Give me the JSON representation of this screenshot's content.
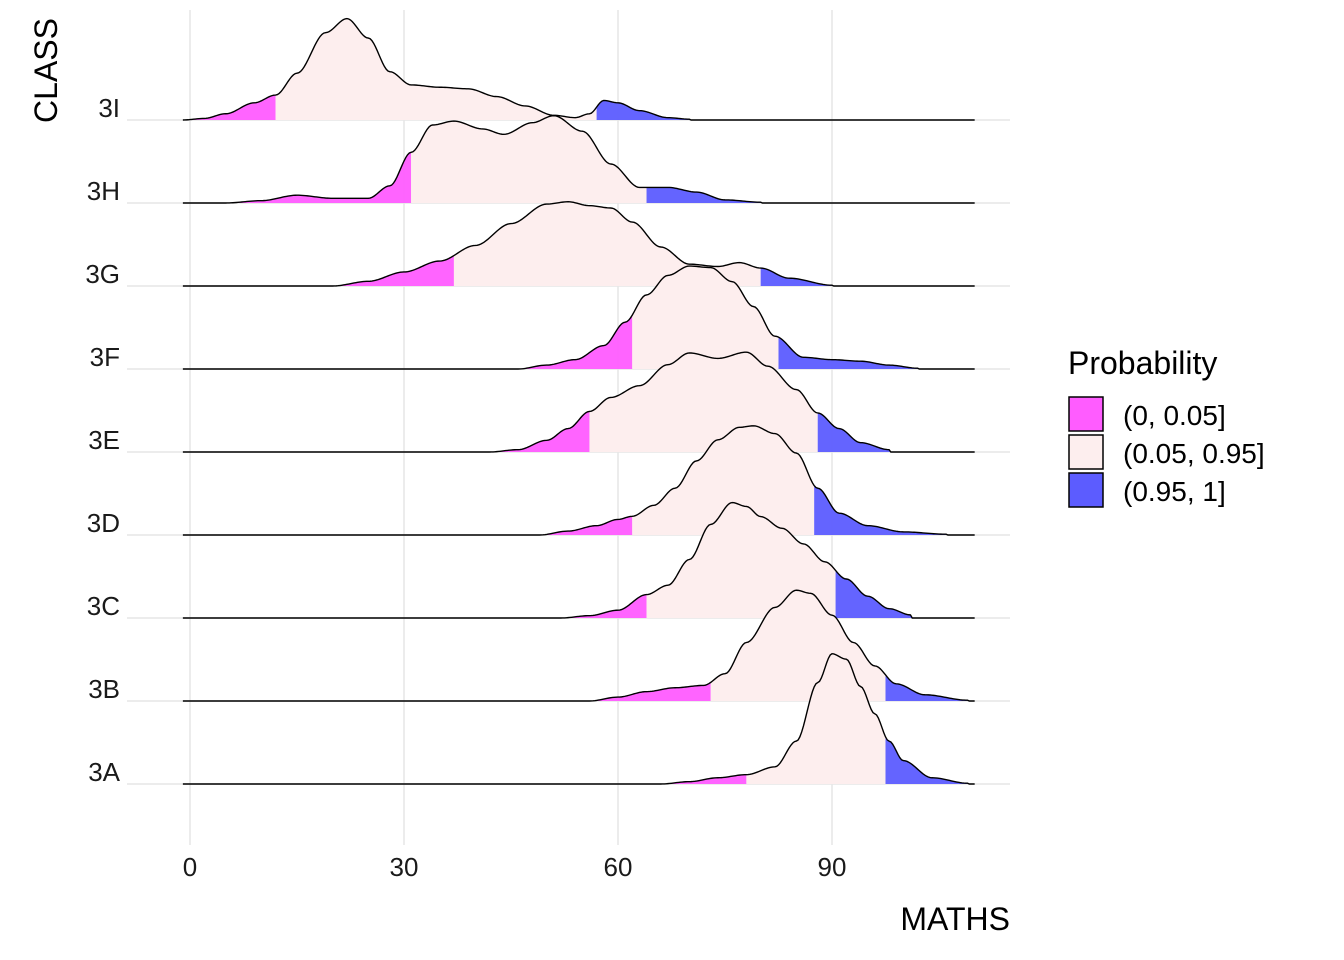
{
  "chart_data": {
    "type": "ridgeline",
    "title": "",
    "xlabel": "MATHS",
    "ylabel": "CLASS",
    "xlim": [
      -3,
      112
    ],
    "x_ticks": [
      0,
      30,
      60,
      90
    ],
    "x_tick_labels": [
      "0",
      "30",
      "60",
      "90"
    ],
    "grid": true,
    "legend": {
      "title": "Probability",
      "placement": "right",
      "entries": [
        {
          "label": "(0, 0.05]",
          "color": "#ff5cff"
        },
        {
          "label": "(0.05, 0.95]",
          "color": "#fdeeee"
        },
        {
          "label": "(0.95, 1]",
          "color": "#5c5cff"
        }
      ]
    },
    "categories": [
      "3A",
      "3B",
      "3C",
      "3D",
      "3E",
      "3F",
      "3G",
      "3H",
      "3I"
    ],
    "series": [
      {
        "name": "3A",
        "q05": 78,
        "q95": 97.5,
        "density": [
          [
            -1,
            0
          ],
          [
            66,
            0
          ],
          [
            70,
            0.03
          ],
          [
            74,
            0.08
          ],
          [
            78,
            0.12
          ],
          [
            82,
            0.22
          ],
          [
            85,
            0.55
          ],
          [
            88,
            1.3
          ],
          [
            90,
            1.67
          ],
          [
            92,
            1.6
          ],
          [
            94,
            1.25
          ],
          [
            96,
            0.9
          ],
          [
            98,
            0.55
          ],
          [
            100,
            0.3
          ],
          [
            104,
            0.08
          ],
          [
            109,
            0.01
          ]
        ]
      },
      {
        "name": "3B",
        "q05": 73,
        "q95": 97.5,
        "density": [
          [
            -1,
            0
          ],
          [
            56,
            0
          ],
          [
            60,
            0.05
          ],
          [
            64,
            0.12
          ],
          [
            68,
            0.17
          ],
          [
            72,
            0.2
          ],
          [
            75,
            0.35
          ],
          [
            78,
            0.75
          ],
          [
            82,
            1.2
          ],
          [
            85,
            1.42
          ],
          [
            87,
            1.38
          ],
          [
            90,
            1.1
          ],
          [
            93,
            0.75
          ],
          [
            96,
            0.45
          ],
          [
            99,
            0.22
          ],
          [
            103,
            0.08
          ],
          [
            109,
            0.01
          ]
        ]
      },
      {
        "name": "3C",
        "q05": 64,
        "q95": 90.5,
        "density": [
          [
            -1,
            0
          ],
          [
            52,
            0
          ],
          [
            56,
            0.03
          ],
          [
            60,
            0.1
          ],
          [
            64,
            0.3
          ],
          [
            67,
            0.42
          ],
          [
            70,
            0.75
          ],
          [
            73,
            1.2
          ],
          [
            76,
            1.48
          ],
          [
            78,
            1.43
          ],
          [
            80,
            1.3
          ],
          [
            83,
            1.15
          ],
          [
            86,
            0.95
          ],
          [
            89,
            0.72
          ],
          [
            92,
            0.5
          ],
          [
            95,
            0.28
          ],
          [
            98,
            0.12
          ],
          [
            101,
            0.04
          ]
        ]
      },
      {
        "name": "3D",
        "q05": 62,
        "q95": 87.5,
        "density": [
          [
            -1,
            0
          ],
          [
            49,
            0
          ],
          [
            53,
            0.05
          ],
          [
            57,
            0.12
          ],
          [
            60,
            0.2
          ],
          [
            62,
            0.24
          ],
          [
            65,
            0.38
          ],
          [
            68,
            0.6
          ],
          [
            71,
            0.95
          ],
          [
            74,
            1.22
          ],
          [
            77,
            1.38
          ],
          [
            79,
            1.4
          ],
          [
            82,
            1.3
          ],
          [
            85,
            1.05
          ],
          [
            88,
            0.6
          ],
          [
            91,
            0.28
          ],
          [
            95,
            0.12
          ],
          [
            100,
            0.04
          ],
          [
            106,
            0.01
          ]
        ]
      },
      {
        "name": "3E",
        "q05": 56,
        "q95": 88,
        "density": [
          [
            -1,
            0
          ],
          [
            42,
            0
          ],
          [
            46,
            0.03
          ],
          [
            50,
            0.15
          ],
          [
            53,
            0.3
          ],
          [
            56,
            0.52
          ],
          [
            59,
            0.7
          ],
          [
            63,
            0.85
          ],
          [
            67,
            1.12
          ],
          [
            70,
            1.27
          ],
          [
            74,
            1.2
          ],
          [
            78,
            1.28
          ],
          [
            81,
            1.1
          ],
          [
            85,
            0.8
          ],
          [
            88,
            0.5
          ],
          [
            91,
            0.3
          ],
          [
            94,
            0.12
          ],
          [
            98,
            0.03
          ]
        ]
      },
      {
        "name": "3F",
        "q05": 62,
        "q95": 82.5,
        "density": [
          [
            -1,
            0
          ],
          [
            46,
            0
          ],
          [
            50,
            0.05
          ],
          [
            54,
            0.12
          ],
          [
            58,
            0.3
          ],
          [
            61,
            0.6
          ],
          [
            64,
            0.95
          ],
          [
            67,
            1.2
          ],
          [
            70,
            1.32
          ],
          [
            73,
            1.3
          ],
          [
            76,
            1.12
          ],
          [
            79,
            0.8
          ],
          [
            82,
            0.42
          ],
          [
            86,
            0.15
          ],
          [
            90,
            0.12
          ],
          [
            94,
            0.1
          ],
          [
            98,
            0.05
          ],
          [
            102,
            0.01
          ]
        ]
      },
      {
        "name": "3G",
        "q05": 37,
        "q95": 80,
        "density": [
          [
            -1,
            0
          ],
          [
            20,
            0
          ],
          [
            25,
            0.06
          ],
          [
            30,
            0.18
          ],
          [
            35,
            0.32
          ],
          [
            40,
            0.52
          ],
          [
            45,
            0.8
          ],
          [
            50,
            1.05
          ],
          [
            53,
            1.08
          ],
          [
            56,
            1.03
          ],
          [
            59,
            1.0
          ],
          [
            62,
            0.82
          ],
          [
            66,
            0.5
          ],
          [
            70,
            0.28
          ],
          [
            74,
            0.25
          ],
          [
            77,
            0.3
          ],
          [
            80,
            0.23
          ],
          [
            84,
            0.1
          ],
          [
            90,
            0.01
          ]
        ]
      },
      {
        "name": "3H",
        "q05": 31,
        "q95": 64,
        "density": [
          [
            -1,
            0
          ],
          [
            5,
            0
          ],
          [
            10,
            0.03
          ],
          [
            15,
            0.1
          ],
          [
            20,
            0.06
          ],
          [
            25,
            0.06
          ],
          [
            28,
            0.22
          ],
          [
            31,
            0.65
          ],
          [
            34,
            1.0
          ],
          [
            37,
            1.05
          ],
          [
            41,
            0.95
          ],
          [
            44,
            0.88
          ],
          [
            48,
            1.03
          ],
          [
            51,
            1.12
          ],
          [
            55,
            0.92
          ],
          [
            59,
            0.5
          ],
          [
            63,
            0.2
          ],
          [
            67,
            0.2
          ],
          [
            71,
            0.14
          ],
          [
            75,
            0.04
          ],
          [
            80,
            0.01
          ]
        ]
      },
      {
        "name": "3I",
        "q05": 12,
        "q95": 57,
        "density": [
          [
            -1,
            0
          ],
          [
            2,
            0.02
          ],
          [
            5,
            0.08
          ],
          [
            9,
            0.22
          ],
          [
            12,
            0.32
          ],
          [
            15,
            0.6
          ],
          [
            19,
            1.12
          ],
          [
            22,
            1.3
          ],
          [
            25,
            1.05
          ],
          [
            28,
            0.62
          ],
          [
            31,
            0.45
          ],
          [
            35,
            0.42
          ],
          [
            39,
            0.4
          ],
          [
            43,
            0.3
          ],
          [
            47,
            0.18
          ],
          [
            51,
            0.06
          ],
          [
            54,
            0.03
          ],
          [
            56,
            0.08
          ],
          [
            58,
            0.25
          ],
          [
            60,
            0.22
          ],
          [
            63,
            0.12
          ],
          [
            67,
            0.03
          ],
          [
            70,
            0.01
          ]
        ]
      }
    ]
  }
}
